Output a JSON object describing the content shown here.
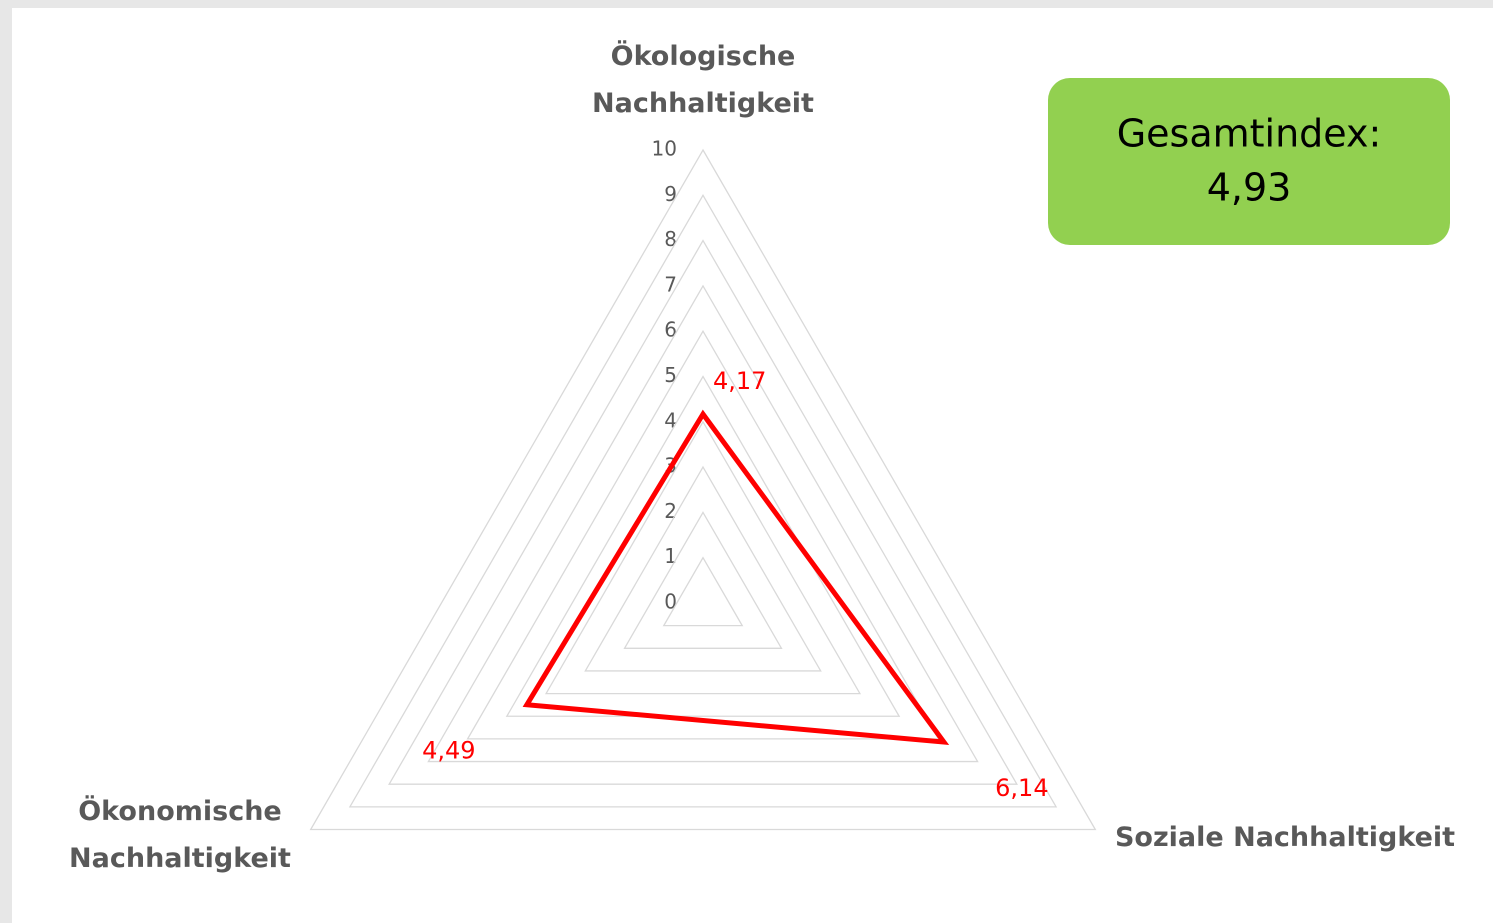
{
  "chart_data": {
    "type": "radar",
    "categories": [
      "Ökologische Nachhaltigkeit",
      "Soziale Nachhaltigkeit",
      "Ökonomische Nachhaltigkeit"
    ],
    "series": [
      {
        "color": "#ff0000",
        "values": [
          4.17,
          6.14,
          4.49
        ],
        "value_labels": [
          "4,17",
          "6,14",
          "4,49"
        ]
      }
    ],
    "rlim": [
      0,
      10
    ],
    "rticks": [
      0,
      1,
      2,
      3,
      4,
      5,
      6,
      7,
      8,
      9,
      10
    ],
    "grid": true,
    "grid_color": "#d9d9d9",
    "annotation": {
      "lines": [
        "Gesamtindex:",
        "4,93"
      ],
      "color": "#92d050"
    }
  }
}
